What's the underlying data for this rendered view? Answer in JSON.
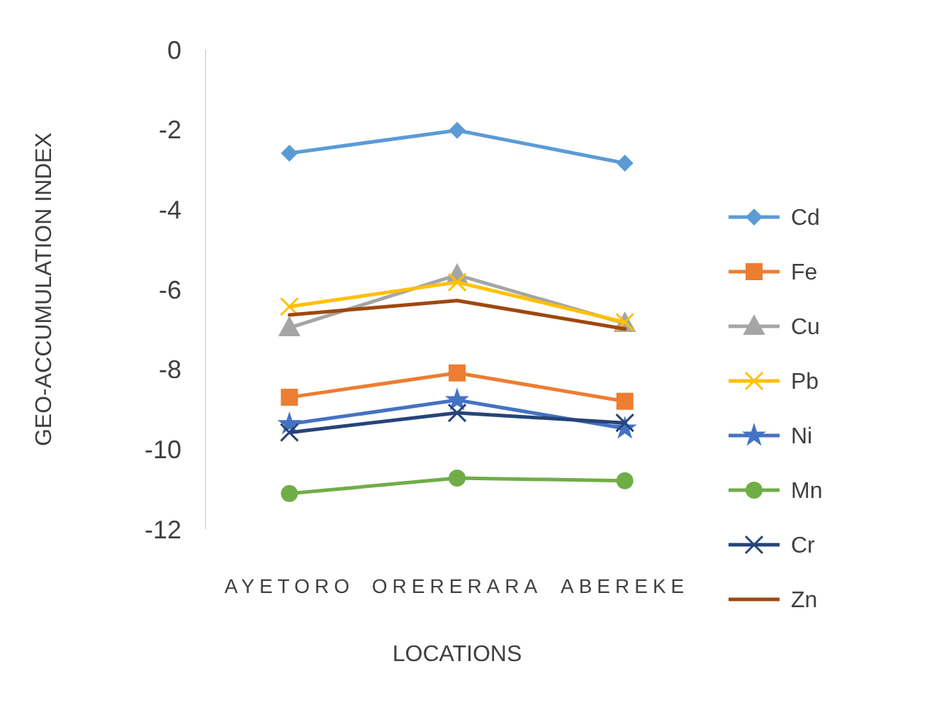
{
  "chart_data": {
    "type": "line",
    "xlabel": "LOCATIONS",
    "ylabel": "GEO-ACCUMULATION INDEX",
    "categories": [
      "AYETORO",
      "ORERERARA",
      "ABEREKE"
    ],
    "ylim": [
      -12,
      0
    ],
    "yticks": [
      -12,
      -10,
      -8,
      -6,
      -4,
      -2,
      0
    ],
    "grid": false,
    "legend": "right",
    "series": [
      {
        "name": "Cd",
        "color": "#5b9bd5",
        "marker": "diamond",
        "values": [
          -2.59,
          -2.02,
          -2.84
        ]
      },
      {
        "name": "Fe",
        "color": "#ed7d31",
        "marker": "square",
        "values": [
          -8.7,
          -8.09,
          -8.8
        ]
      },
      {
        "name": "Cu",
        "color": "#a5a5a5",
        "marker": "triangle",
        "values": [
          -6.96,
          -5.64,
          -6.85
        ]
      },
      {
        "name": "Pb",
        "color": "#ffc000",
        "marker": "cross",
        "values": [
          -6.43,
          -5.82,
          -6.82
        ]
      },
      {
        "name": "Ni",
        "color": "#4472c4",
        "marker": "star",
        "values": [
          -9.37,
          -8.77,
          -9.48
        ]
      },
      {
        "name": "Mn",
        "color": "#70ad47",
        "marker": "circle",
        "values": [
          -11.11,
          -10.72,
          -10.79
        ]
      },
      {
        "name": "Cr",
        "color": "#264478",
        "marker": "cross",
        "values": [
          -9.58,
          -9.09,
          -9.34
        ]
      },
      {
        "name": "Zn",
        "color": "#9e480e",
        "marker": "none",
        "values": [
          -6.64,
          -6.28,
          -6.99
        ]
      }
    ]
  }
}
